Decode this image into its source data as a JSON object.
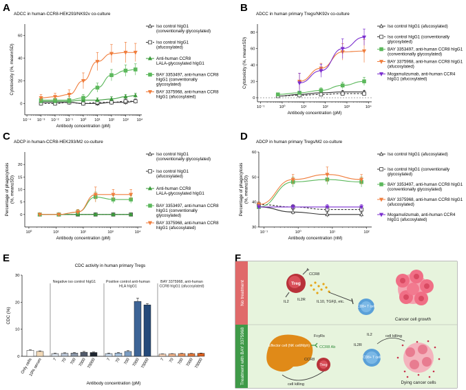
{
  "panel_letters": [
    "A",
    "B",
    "C",
    "D",
    "E",
    "F"
  ],
  "chart_data": [
    {
      "id": "A",
      "type": "line",
      "title": "ADCC in human-CCR8-HEK293/NK92v co-culture",
      "xlabel": "Antibody concentration (pM)",
      "ylabel": "Cytotoxicity (%, mean±SD)",
      "xscale": "log",
      "xticks": [
        -4,
        -3,
        -2,
        -1,
        0,
        1,
        2,
        3,
        4
      ],
      "xtick_labels": [
        "10⁻⁴",
        "10⁻³",
        "10⁻²",
        "10⁻¹",
        "10⁰",
        "10¹",
        "10²",
        "10³",
        "10⁴"
      ],
      "ylim": [
        -10,
        70
      ],
      "yticks": [
        0,
        20,
        40,
        60
      ],
      "ytick_labels": [
        "0",
        "20",
        "40",
        "60"
      ],
      "series": [
        {
          "name": "Iso control hIgG1 (conventionally glycosylated)",
          "color": "#333333",
          "marker": "triangle-open",
          "dash": "",
          "x": [
            -3,
            -2,
            -1,
            0,
            1,
            2,
            3,
            3.7
          ],
          "y": [
            1,
            1,
            1,
            0,
            0,
            1,
            1,
            2
          ],
          "err": [
            2,
            2,
            2,
            2,
            2,
            2,
            2,
            2
          ]
        },
        {
          "name": "Iso control hIgG1 (afucosylated)",
          "color": "#333333",
          "marker": "square-open",
          "dash": "3,2",
          "x": [
            -3,
            -2,
            -1,
            0,
            1,
            2,
            3,
            3.7
          ],
          "y": [
            0,
            0,
            1,
            0,
            1,
            1,
            2,
            2
          ],
          "err": [
            2,
            2,
            2,
            2,
            2,
            2,
            2,
            2
          ]
        },
        {
          "name": "Anti-human CCR8 LALA-glycosylated hIgG1",
          "color": "#3a9a3a",
          "marker": "triangle",
          "dash": "",
          "x": [
            -3,
            -2,
            -1,
            0,
            1,
            2,
            3,
            3.7
          ],
          "y": [
            2,
            2,
            2,
            3,
            3,
            4,
            6,
            7
          ],
          "err": [
            2,
            2,
            2,
            2,
            2,
            2,
            2,
            2
          ]
        },
        {
          "name": "BAY 3353497, anti-human CCR8 hIgG1 (conventionally glycosylated)",
          "color": "#5cb85c",
          "marker": "square",
          "dash": "",
          "x": [
            -3,
            -2,
            -1,
            0,
            1,
            2,
            3,
            3.7
          ],
          "y": [
            3,
            3,
            3,
            5,
            14,
            25,
            29,
            30
          ],
          "err": [
            3,
            3,
            3,
            3,
            4,
            5,
            5,
            5
          ]
        },
        {
          "name": "BAY 3375968, anti-human CCR8 hIgG1 (afucosylated)",
          "color": "#f07d3c",
          "marker": "triangle-down",
          "dash": "",
          "x": [
            -3,
            -2,
            -1,
            0,
            1,
            2,
            3,
            3.7
          ],
          "y": [
            5,
            6,
            8,
            20,
            37,
            44,
            45,
            45
          ],
          "err": [
            3,
            3,
            4,
            7,
            8,
            8,
            9,
            8
          ]
        }
      ]
    },
    {
      "id": "B",
      "type": "line",
      "title": "ADCC in human primary Tregs/NK92v co-culture",
      "xlabel": "Antibody concentration (pM)",
      "ylabel": "Cytotoxicity (%, mean±SD)",
      "xscale": "log",
      "xticks": [
        -1,
        0,
        1,
        2,
        3,
        4
      ],
      "xtick_labels": [
        "10⁻¹",
        "10⁰",
        "10¹",
        "10²",
        "10³",
        "10⁴"
      ],
      "ylim": [
        -5,
        90
      ],
      "yticks": [
        0,
        20,
        40,
        60,
        80
      ],
      "ytick_labels": [
        "0",
        "20",
        "40",
        "60",
        "80"
      ],
      "series": [
        {
          "name": "Iso control hIgG1 (afucosylated)",
          "color": "#333333",
          "marker": "triangle-open",
          "dash": "",
          "x": [
            -0.2,
            0.8,
            1.8,
            2.8,
            3.8
          ],
          "y": [
            2,
            4,
            6,
            7,
            7
          ],
          "err": [
            2,
            2,
            2,
            2,
            2
          ]
        },
        {
          "name": "Iso control hIgG1 (conventionally glycosylated)",
          "color": "#333333",
          "marker": "square-open",
          "dash": "3,2",
          "x": [
            -0.2,
            0.8,
            1.8,
            2.8,
            3.8
          ],
          "y": [
            2,
            3,
            4,
            5,
            5
          ],
          "err": [
            2,
            2,
            2,
            2,
            2
          ]
        },
        {
          "name": "BAY 3353497, anti-human CCR8 hIgG1 (conventionally glycosylated)",
          "color": "#5cb85c",
          "marker": "square",
          "dash": "",
          "x": [
            -0.2,
            0.8,
            1.8,
            2.8,
            3.8
          ],
          "y": [
            4,
            6,
            9,
            15,
            20
          ],
          "err": [
            2,
            2,
            3,
            4,
            5
          ]
        },
        {
          "name": "BAY 3375968, anti-human CCR8 hIgG1 (afucosylated)",
          "color": "#f07d3c",
          "marker": "triangle-down",
          "dash": "",
          "x": [
            0.8,
            1.8,
            2.8,
            3.8
          ],
          "y": [
            20,
            36,
            56,
            57
          ],
          "err": [
            10,
            6,
            10,
            14
          ]
        },
        {
          "name": "Mogamulizumab, anti-human CCR4 hIgG1 (afucosylated)",
          "color": "#7b2fcf",
          "marker": "triangle-down",
          "dash": "",
          "x": [
            0.8,
            1.8,
            2.8,
            3.8
          ],
          "y": [
            18,
            33,
            60,
            74
          ],
          "err": [
            12,
            8,
            12,
            10
          ]
        }
      ]
    },
    {
      "id": "C",
      "type": "line",
      "title": "ADCP in human-CCR8-HEK293/M2 co-culture",
      "xlabel": "Antibody concentration (pM)",
      "ylabel": "Percentage of phagocytosis (%, mean±SD)",
      "xscale": "log",
      "xticks": [
        0,
        1,
        2,
        3,
        4
      ],
      "xtick_labels": [
        "10⁰",
        "10¹",
        "10²",
        "10³",
        "10⁴"
      ],
      "ylim": [
        -5,
        25
      ],
      "yticks": [
        0,
        5,
        10,
        15,
        20
      ],
      "ytick_labels": [
        "0",
        "5",
        "10",
        "15",
        "20"
      ],
      "series": [
        {
          "name": "Iso control hIgG1 (conventionally glycosylated)",
          "color": "#333333",
          "marker": "triangle-open",
          "dash": "",
          "x": [
            0.4,
            1.1,
            1.8,
            2.45,
            3.1,
            3.75
          ],
          "y": [
            0,
            0,
            0,
            0,
            0,
            0
          ],
          "err": [
            0.4,
            0.4,
            0.4,
            0.4,
            0.4,
            0.4
          ]
        },
        {
          "name": "Iso control hIgG1 (afucosylated)",
          "color": "#333333",
          "marker": "square-open",
          "dash": "3,2",
          "x": [
            0.4,
            1.1,
            1.8,
            2.45,
            3.1,
            3.75
          ],
          "y": [
            0,
            0,
            0,
            0,
            0,
            0
          ],
          "err": [
            0.4,
            0.4,
            0.4,
            0.4,
            0.4,
            0.4
          ]
        },
        {
          "name": "Anti-human CCR8 LALA-glycosylated hIgG1",
          "color": "#3a9a3a",
          "marker": "triangle",
          "dash": "",
          "x": [
            0.4,
            1.1,
            1.8,
            2.45,
            3.1,
            3.75
          ],
          "y": [
            0,
            0,
            0,
            0,
            0,
            0
          ],
          "err": [
            0.4,
            0.4,
            0.4,
            0.4,
            0.4,
            0.4
          ]
        },
        {
          "name": "BAY 3353497, anti-human CCR8 hIgG1 (conventionally glycosylated)",
          "color": "#5cb85c",
          "marker": "square",
          "dash": "",
          "x": [
            0.4,
            1.1,
            1.8,
            2.45,
            3.1,
            3.75
          ],
          "y": [
            0,
            0,
            1,
            7,
            6,
            6
          ],
          "err": [
            0.5,
            0.5,
            1,
            2,
            1.5,
            1.5
          ]
        },
        {
          "name": "BAY 3375968, anti-human CCR8 hIgG1 (afucosylated)",
          "color": "#f07d3c",
          "marker": "triangle-down",
          "dash": "",
          "x": [
            0.4,
            1.1,
            1.8,
            2.45,
            3.1,
            3.75
          ],
          "y": [
            0,
            0,
            1,
            8,
            8,
            8
          ],
          "err": [
            0.5,
            0.5,
            1,
            3,
            2,
            2
          ]
        }
      ]
    },
    {
      "id": "D",
      "type": "line",
      "title": "ADCP in human primary Tregs/M2 co-culture",
      "xlabel": "Antibody concentration (nM)",
      "ylabel": "Percentage of phagocytosis (%, mean±SD)",
      "xscale": "log",
      "xticks": [
        -1,
        0,
        1,
        2
      ],
      "xtick_labels": [
        "10⁻¹",
        "10⁰",
        "10¹",
        "10²"
      ],
      "ylim": [
        30,
        60
      ],
      "yticks": [
        30,
        40,
        50,
        60
      ],
      "ytick_labels": [
        "30",
        "40",
        "50",
        "60"
      ],
      "series": [
        {
          "name": "Iso control hIgG1 (afucosylated)",
          "color": "#333333",
          "marker": "triangle-open",
          "dash": "",
          "x": [
            -1.15,
            -0.15,
            0.85,
            1.85
          ],
          "y": [
            38,
            36,
            35,
            35
          ],
          "err": [
            1,
            1,
            1,
            1
          ]
        },
        {
          "name": "Iso control hIgG1 (conventionally glycosylated)",
          "color": "#333333",
          "marker": "square-open",
          "dash": "3,2",
          "x": [
            -1.15,
            -0.15,
            0.85,
            1.85
          ],
          "y": [
            39,
            38,
            37,
            37
          ],
          "err": [
            1,
            1,
            1,
            1
          ]
        },
        {
          "name": "BAY 3353497, anti-human CCR8 hIgG1 (conventionally glycosylated)",
          "color": "#5cb85c",
          "marker": "square",
          "dash": "",
          "x": [
            -1.15,
            -0.15,
            0.85,
            1.85
          ],
          "y": [
            38,
            48,
            49,
            48
          ],
          "err": [
            1,
            2,
            2,
            2
          ]
        },
        {
          "name": "BAY 3375968, anti-human CCR8 hIgG1 (afucosylated)",
          "color": "#f07d3c",
          "marker": "triangle-down",
          "dash": "",
          "x": [
            -1.15,
            -0.15,
            0.85,
            1.85
          ],
          "y": [
            39,
            49,
            51,
            49
          ],
          "err": [
            1,
            2,
            3,
            2
          ]
        },
        {
          "name": "Mogamulizumab, anti-human CCR4 hIgG1 (afucosylated)",
          "color": "#7b2fcf",
          "marker": "triangle-down",
          "dash": "",
          "x": [
            -1.15,
            -0.15,
            0.85,
            1.85
          ],
          "y": [
            38,
            38,
            38,
            38
          ],
          "err": [
            1,
            1,
            1,
            1
          ]
        }
      ]
    },
    {
      "id": "E",
      "type": "bar",
      "title": "CDC activity in human primary Tregs",
      "xlabel": "Antibody concentration (pM)",
      "ylabel": "CDC (%)",
      "ylim": [
        0,
        30
      ],
      "yticks": [
        0,
        10,
        20,
        30
      ],
      "ytick_labels": [
        "0",
        "10",
        "20",
        "30"
      ],
      "group_labels": [
        "Negative iso control hIgG1",
        "Positive control anti-human HLA hIgG1",
        "BAY 3375968, anti-human CCR8 hIgG1 (afucosylated)"
      ],
      "categories": [
        "Only cells",
        "10% serum",
        "7",
        "70",
        "700",
        "7000",
        "70000",
        "7",
        "70",
        "700",
        "7000",
        "70000",
        "7",
        "70",
        "700",
        "7000",
        "70000"
      ],
      "values": [
        2.2,
        1.8,
        1.0,
        1.1,
        1.2,
        1.5,
        1.4,
        1.0,
        1.2,
        1.8,
        20.3,
        19.0,
        0.8,
        0.9,
        1.0,
        1.0,
        1.1
      ],
      "errors": [
        0.2,
        0.2,
        0.2,
        0.2,
        0.2,
        0.3,
        0.2,
        0.2,
        0.2,
        0.3,
        1.2,
        0.5,
        0.1,
        0.1,
        0.1,
        0.1,
        0.1
      ],
      "bar_colors": [
        "#ffffff",
        "#f2d9b8",
        "#d8dfe8",
        "#b7c2d2",
        "#8d99aa",
        "#50596a",
        "#1e2530",
        "#c9d9ea",
        "#a5bfda",
        "#7b9dc2",
        "#3d6496",
        "#244a7a",
        "#f6d2b8",
        "#f3b58c",
        "#ee9660",
        "#e67a3c",
        "#d95f1f"
      ]
    }
  ],
  "legends": {
    "A": [
      "Iso control hIgG1 (conventionally glycosylated)",
      "Iso control hIgG1 (afucosylated)",
      "Anti-human CCR8 LALA-glycosylated hIgG1",
      "BAY 3353497, anti-human CCR8 hIgG1 (conventionally glycosylated)",
      "BAY 3375968, anti-human CCR8 hIgG1 (afucosylated)"
    ],
    "B": [
      "Iso control hIgG1 (afucosylated)",
      "Iso control hIgG1 (conventionally glycosylated)",
      "BAY 3353497, anti-human CCR8 hIgG1 (conventionally glycosylated)",
      "BAY 3375968, anti-human CCR8 hIgG1 (afucosylated)",
      "Mogamulizumab, anti-human CCR4 hIgG1 (afucosylated)"
    ]
  },
  "panel_f": {
    "top_row_label": "No treatment",
    "bottom_row_label": "Treatment with BAY 3375968",
    "treg": "Treg",
    "ccr8": "CCR8",
    "il2": "IL2",
    "il2r": "IL2R",
    "cytokines": "IL10, TGFβ, etc.",
    "cd8": "CD8+ T cell",
    "cancer_growth": "Cancer cell growth",
    "effector": "Effector cell (NK cell/Mph)",
    "fcyr": "FcγRs",
    "ccr8_ab": "CCR8 Ab",
    "cell_killing": "cell killing",
    "dying": "Dying cancer cells",
    "colors": {
      "top_bg": "#e8f5e0",
      "bottom_bg": "#e8f5e0",
      "top_tab": "#e06a6a",
      "bottom_tab": "#3f9a48",
      "treg": "#c0392b",
      "effector": "#e08a18",
      "cd8": "#5aa0d8",
      "cancer": "#f06f86"
    }
  }
}
